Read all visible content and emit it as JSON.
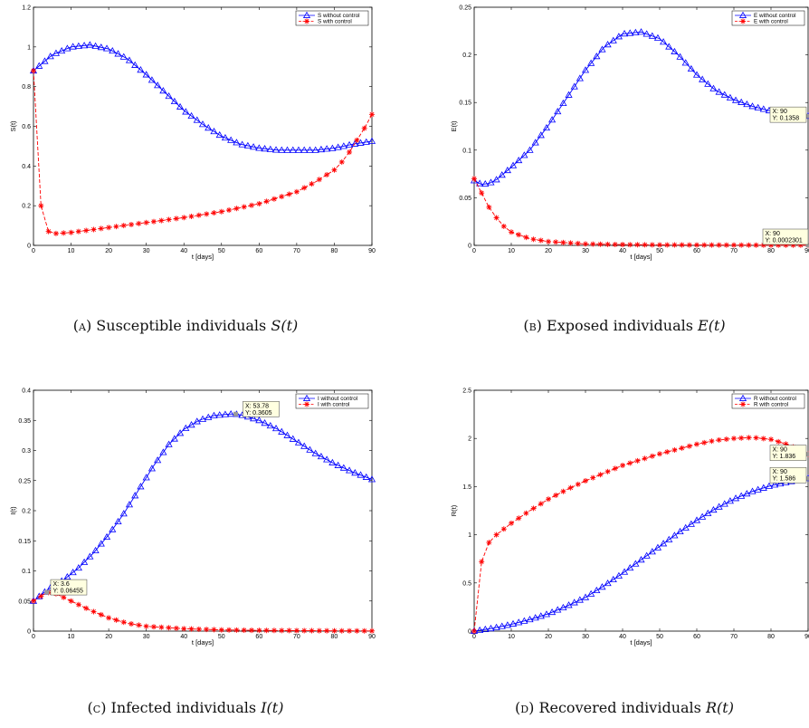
{
  "captions": [
    {
      "tag": "(a)",
      "text": "Susceptible individuals",
      "math": "S(t)"
    },
    {
      "tag": "(b)",
      "text": "Exposed individuals",
      "math": "E(t)"
    },
    {
      "tag": "(c)",
      "text": "Infected individuals",
      "math": "I(t)"
    },
    {
      "tag": "(d)",
      "text": "Recovered individuals",
      "math": "R(t)"
    }
  ],
  "colors": {
    "without_control": "#0000ff",
    "with_control": "#ff0000",
    "tooltip_bg": "#ffffe0"
  },
  "chart_data": [
    {
      "type": "line",
      "xlabel": "t [days]",
      "ylabel": "S(t)",
      "xlim": [
        0,
        90
      ],
      "ylim": [
        0,
        1.2
      ],
      "xticks": [
        0,
        10,
        20,
        30,
        40,
        50,
        60,
        70,
        80,
        90
      ],
      "xtick_labels": [
        "0",
        "10",
        "20",
        "30",
        "40",
        "50",
        "60",
        "70",
        "80",
        "90"
      ],
      "yticks": [
        0,
        0.2,
        0.4,
        0.6,
        0.8,
        1,
        1.2
      ],
      "ytick_labels": [
        "0",
        "0.2",
        "0.4",
        "0.6",
        "0.8",
        "1",
        "1.2"
      ],
      "legend": "top-right",
      "series": [
        {
          "name": "S without control",
          "marker": "triangle",
          "style": "solid",
          "x": [
            0,
            5,
            10,
            15,
            20,
            25,
            30,
            35,
            40,
            45,
            50,
            55,
            60,
            65,
            70,
            75,
            80,
            85,
            90
          ],
          "y": [
            0.88,
            0.96,
            1.0,
            1.01,
            0.99,
            0.94,
            0.86,
            0.77,
            0.68,
            0.61,
            0.55,
            0.51,
            0.49,
            0.48,
            0.48,
            0.48,
            0.49,
            0.51,
            0.525
          ]
        },
        {
          "name": "S with control",
          "marker": "star",
          "style": "dashed",
          "x": [
            0,
            2,
            4,
            6,
            10,
            20,
            30,
            40,
            50,
            60,
            70,
            75,
            80,
            82,
            84,
            86,
            88,
            90
          ],
          "y": [
            0.88,
            0.2,
            0.07,
            0.06,
            0.065,
            0.09,
            0.115,
            0.14,
            0.17,
            0.21,
            0.27,
            0.32,
            0.38,
            0.42,
            0.47,
            0.53,
            0.59,
            0.66
          ]
        }
      ],
      "annotations": []
    },
    {
      "type": "line",
      "xlabel": "t [days]",
      "ylabel": "E(t)",
      "xlim": [
        0,
        90
      ],
      "ylim": [
        0,
        0.25
      ],
      "xticks": [
        0,
        10,
        20,
        30,
        40,
        50,
        60,
        70,
        80,
        90
      ],
      "xtick_labels": [
        "0",
        "10",
        "20",
        "30",
        "40",
        "50",
        "60",
        "70",
        "80",
        "90"
      ],
      "yticks": [
        0,
        0.05,
        0.1,
        0.15,
        0.2,
        0.25
      ],
      "ytick_labels": [
        "0",
        "0.05",
        "0.1",
        "0.15",
        "0.2",
        "0.25"
      ],
      "legend": "top-right",
      "series": [
        {
          "name": "E without control",
          "marker": "triangle",
          "style": "solid",
          "x": [
            0,
            2,
            4,
            6,
            10,
            15,
            20,
            25,
            30,
            35,
            40,
            45,
            50,
            55,
            60,
            65,
            70,
            75,
            80,
            85,
            90
          ],
          "y": [
            0.068,
            0.064,
            0.065,
            0.069,
            0.082,
            0.1,
            0.126,
            0.155,
            0.184,
            0.208,
            0.222,
            0.224,
            0.217,
            0.2,
            0.179,
            0.163,
            0.153,
            0.146,
            0.141,
            0.138,
            0.1358
          ]
        },
        {
          "name": "E with control",
          "marker": "star",
          "style": "dashed",
          "x": [
            0,
            2,
            4,
            6,
            8,
            10,
            15,
            20,
            30,
            40,
            50,
            60,
            70,
            80,
            90
          ],
          "y": [
            0.07,
            0.055,
            0.04,
            0.029,
            0.02,
            0.014,
            0.007,
            0.004,
            0.0015,
            0.0008,
            0.0005,
            0.0004,
            0.0003,
            0.00025,
            0.0002301
          ]
        }
      ],
      "annotations": [
        {
          "x": 90,
          "y": 0.1358,
          "lines": [
            "X: 90",
            "Y: 0.1358"
          ]
        },
        {
          "x": 90,
          "y": 0.0002301,
          "lines": [
            "X: 90",
            "Y: 0.0002301"
          ]
        }
      ]
    },
    {
      "type": "line",
      "xlabel": "t [days]",
      "ylabel": "I(t)",
      "xlim": [
        0,
        90
      ],
      "ylim": [
        0,
        0.4
      ],
      "xticks": [
        0,
        10,
        20,
        30,
        40,
        50,
        60,
        70,
        80,
        90
      ],
      "xtick_labels": [
        "0",
        "10",
        "20",
        "30",
        "40",
        "50",
        "60",
        "70",
        "80",
        "90"
      ],
      "yticks": [
        0,
        0.05,
        0.1,
        0.15,
        0.2,
        0.25,
        0.3,
        0.35,
        0.4
      ],
      "ytick_labels": [
        "0",
        "0.05",
        "0.1",
        "0.15",
        "0.2",
        "0.25",
        "0.3",
        "0.35",
        "0.4"
      ],
      "legend": "top-right",
      "series": [
        {
          "name": "I without control",
          "marker": "triangle",
          "style": "solid",
          "x": [
            0,
            4,
            8,
            12,
            16,
            20,
            24,
            28,
            32,
            36,
            40,
            44,
            48,
            52,
            53.78,
            56,
            60,
            65,
            70,
            75,
            80,
            85,
            90
          ],
          "y": [
            0.05,
            0.07,
            0.085,
            0.105,
            0.13,
            0.16,
            0.195,
            0.235,
            0.275,
            0.31,
            0.335,
            0.35,
            0.358,
            0.3605,
            0.3605,
            0.358,
            0.35,
            0.335,
            0.315,
            0.295,
            0.278,
            0.264,
            0.252
          ]
        },
        {
          "name": "I with control",
          "marker": "star",
          "style": "dashed",
          "x": [
            0,
            2,
            3.6,
            6,
            10,
            15,
            20,
            25,
            30,
            40,
            50,
            60,
            70,
            80,
            90
          ],
          "y": [
            0.05,
            0.058,
            0.06455,
            0.062,
            0.05,
            0.035,
            0.022,
            0.013,
            0.008,
            0.004,
            0.002,
            0.0012,
            0.0008,
            0.0005,
            0.0003
          ]
        }
      ],
      "annotations": [
        {
          "x": 53.78,
          "y": 0.3605,
          "lines": [
            "X: 53.78",
            "Y: 0.3605"
          ]
        },
        {
          "x": 3.6,
          "y": 0.06455,
          "lines": [
            "X: 3.6",
            "Y: 0.06455"
          ]
        }
      ]
    },
    {
      "type": "line",
      "xlabel": "t [days]",
      "ylabel": "R(t)",
      "xlim": [
        0,
        90
      ],
      "ylim": [
        0,
        2.5
      ],
      "xticks": [
        0,
        10,
        20,
        30,
        40,
        50,
        60,
        70,
        80,
        90
      ],
      "xtick_labels": [
        "0",
        "10",
        "20",
        "30",
        "40",
        "50",
        "60",
        "70",
        "80",
        "90"
      ],
      "yticks": [
        0,
        0.5,
        1,
        1.5,
        2,
        2.5
      ],
      "ytick_labels": [
        "0",
        "0.5",
        "1",
        "1.5",
        "2",
        "2.5"
      ],
      "legend": "top-right",
      "series": [
        {
          "name": "R without control",
          "marker": "triangle",
          "style": "solid",
          "x": [
            0,
            5,
            10,
            15,
            20,
            25,
            30,
            35,
            40,
            45,
            50,
            55,
            60,
            65,
            70,
            75,
            80,
            85,
            90
          ],
          "y": [
            0,
            0.03,
            0.07,
            0.12,
            0.18,
            0.26,
            0.35,
            0.47,
            0.6,
            0.74,
            0.88,
            1.02,
            1.15,
            1.27,
            1.37,
            1.45,
            1.51,
            1.55,
            1.586
          ]
        },
        {
          "name": "R with control",
          "marker": "star",
          "style": "dashed",
          "x": [
            0,
            2,
            4,
            6,
            10,
            15,
            20,
            25,
            30,
            35,
            40,
            45,
            50,
            55,
            60,
            65,
            70,
            75,
            80,
            85,
            90
          ],
          "y": [
            0,
            0.72,
            0.92,
            1.0,
            1.12,
            1.25,
            1.37,
            1.47,
            1.56,
            1.64,
            1.72,
            1.78,
            1.84,
            1.89,
            1.94,
            1.98,
            2.0,
            2.01,
            1.99,
            1.93,
            1.836
          ]
        }
      ],
      "annotations": [
        {
          "x": 90,
          "y": 1.836,
          "lines": [
            "X: 90",
            "Y: 1.836"
          ]
        },
        {
          "x": 90,
          "y": 1.586,
          "lines": [
            "X: 90",
            "Y: 1.586"
          ]
        }
      ]
    }
  ]
}
